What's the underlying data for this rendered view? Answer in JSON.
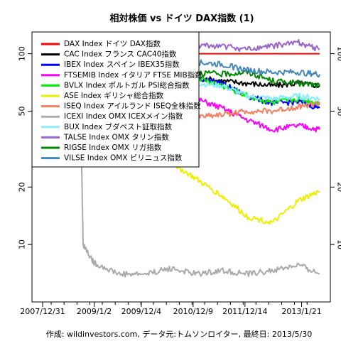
{
  "chart_data": {
    "type": "line",
    "title": "相対株価 vs ドイツ DAX指数 (1)",
    "footer": "作成: wildinvestors.com, データ元:トムソンロイター, 最終日: 2013/5/30",
    "y_scale": "log",
    "ylim": [
      5,
      130
    ],
    "y_ticks": [
      {
        "value": 10,
        "label": "10"
      },
      {
        "value": 20,
        "label": "20"
      },
      {
        "value": 50,
        "label": "50"
      },
      {
        "value": 100,
        "label": "100"
      }
    ],
    "x_range": [
      "2007-12-31",
      "2013-05-30"
    ],
    "x_ticks": [
      {
        "date": "2007-12-31",
        "label": "2007/12/31"
      },
      {
        "date": "2009-01-02",
        "label": "2009/1/2"
      },
      {
        "date": "2009-12-04",
        "label": "2009/12/4"
      },
      {
        "date": "2010-12-09",
        "label": "2010/12/9"
      },
      {
        "date": "2011-12-14",
        "label": "2011/12/14"
      },
      {
        "date": "2013-01-21",
        "label": "2013/1/21"
      }
    ],
    "legend_position": "top-left",
    "series": [
      {
        "name": "DAX Index ドイツ DAX指数",
        "color": "#ff0000",
        "points": [
          [
            "2007-12-31",
            100
          ],
          [
            "2008-12-31",
            100
          ],
          [
            "2010-12-31",
            100
          ],
          [
            "2013-05-30",
            100
          ]
        ]
      },
      {
        "name": "CAC Index フランス CAC40指数",
        "color": "#000000",
        "points": [
          [
            "2007-12-31",
            100
          ],
          [
            "2008-06-30",
            98
          ],
          [
            "2009-03-01",
            95
          ],
          [
            "2009-12-31",
            88
          ],
          [
            "2010-06-30",
            85
          ],
          [
            "2010-12-31",
            75
          ],
          [
            "2011-06-30",
            72
          ],
          [
            "2011-12-31",
            70
          ],
          [
            "2012-06-30",
            68
          ],
          [
            "2012-12-31",
            70
          ],
          [
            "2013-05-30",
            68
          ]
        ]
      },
      {
        "name": "IBEX Index スペイン IBEX35指数",
        "color": "#0000ff",
        "points": [
          [
            "2007-12-31",
            100
          ],
          [
            "2008-06-30",
            98
          ],
          [
            "2009-03-01",
            100
          ],
          [
            "2009-12-31",
            95
          ],
          [
            "2010-06-30",
            85
          ],
          [
            "2010-12-31",
            75
          ],
          [
            "2011-06-30",
            70
          ],
          [
            "2011-12-31",
            60
          ],
          [
            "2012-06-30",
            55
          ],
          [
            "2012-12-31",
            56
          ],
          [
            "2013-05-30",
            52
          ]
        ]
      },
      {
        "name": "FTSEMIB Index イタリア FTSE MIB指数",
        "color": "#ff00ff",
        "points": [
          [
            "2007-12-31",
            100
          ],
          [
            "2008-06-30",
            90
          ],
          [
            "2009-03-01",
            78
          ],
          [
            "2009-12-31",
            72
          ],
          [
            "2010-06-30",
            65
          ],
          [
            "2010-12-31",
            58
          ],
          [
            "2011-06-30",
            52
          ],
          [
            "2011-12-31",
            45
          ],
          [
            "2012-06-30",
            40
          ],
          [
            "2012-12-31",
            42
          ],
          [
            "2013-05-30",
            40
          ]
        ]
      },
      {
        "name": "BVLX Index ポルトガル PSI総合指数",
        "color": "#00ee00",
        "points": [
          [
            "2007-12-31",
            100
          ],
          [
            "2008-06-30",
            95
          ],
          [
            "2009-03-01",
            92
          ],
          [
            "2009-12-31",
            90
          ],
          [
            "2010-06-30",
            85
          ],
          [
            "2010-12-31",
            75
          ],
          [
            "2011-06-30",
            68
          ],
          [
            "2011-12-31",
            60
          ],
          [
            "2012-06-30",
            55
          ],
          [
            "2012-12-31",
            58
          ],
          [
            "2013-05-30",
            55
          ]
        ]
      },
      {
        "name": "ASE Index ギリシャ総合指数",
        "color": "#eeee00",
        "points": [
          [
            "2007-12-31",
            100
          ],
          [
            "2008-06-30",
            85
          ],
          [
            "2009-01-01",
            55
          ],
          [
            "2009-06-30",
            45
          ],
          [
            "2009-12-31",
            35
          ],
          [
            "2010-06-30",
            27
          ],
          [
            "2010-12-31",
            22
          ],
          [
            "2011-06-30",
            18
          ],
          [
            "2011-12-31",
            14
          ],
          [
            "2012-06-30",
            13
          ],
          [
            "2012-12-31",
            17
          ],
          [
            "2013-05-30",
            19
          ]
        ]
      },
      {
        "name": "ISEQ Index アイルランド ISEQ全株指数",
        "color": "#f48060",
        "points": [
          [
            "2007-12-31",
            100
          ],
          [
            "2008-06-30",
            80
          ],
          [
            "2009-01-01",
            55
          ],
          [
            "2009-12-31",
            50
          ],
          [
            "2010-06-30",
            48
          ],
          [
            "2010-12-31",
            47
          ],
          [
            "2011-06-30",
            48
          ],
          [
            "2011-12-31",
            50
          ],
          [
            "2012-06-30",
            50
          ],
          [
            "2012-12-31",
            53
          ],
          [
            "2013-05-30",
            55
          ]
        ]
      },
      {
        "name": "ICEXI Index OMX ICEXメイン指数",
        "color": "#aaaaaa",
        "points": [
          [
            "2007-12-31",
            100
          ],
          [
            "2008-06-30",
            70
          ],
          [
            "2008-09-30",
            40
          ],
          [
            "2008-10-15",
            10
          ],
          [
            "2009-01-01",
            8
          ],
          [
            "2009-06-30",
            7
          ],
          [
            "2009-12-31",
            7
          ],
          [
            "2010-06-30",
            7.5
          ],
          [
            "2010-12-31",
            7
          ],
          [
            "2011-06-30",
            7.3
          ],
          [
            "2011-12-31",
            7
          ],
          [
            "2012-06-30",
            7.3
          ],
          [
            "2012-12-31",
            7.8
          ],
          [
            "2013-05-30",
            7
          ]
        ]
      },
      {
        "name": "BUX Index ブダペスト証取指数",
        "color": "#88eeff",
        "points": [
          [
            "2007-12-31",
            100
          ],
          [
            "2008-06-30",
            92
          ],
          [
            "2009-03-01",
            80
          ],
          [
            "2009-12-31",
            85
          ],
          [
            "2010-06-30",
            80
          ],
          [
            "2010-12-31",
            70
          ],
          [
            "2011-06-30",
            68
          ],
          [
            "2011-12-31",
            60
          ],
          [
            "2012-06-30",
            58
          ],
          [
            "2012-12-31",
            60
          ],
          [
            "2013-05-30",
            58
          ]
        ]
      },
      {
        "name": "TALSE Index OMX タリン指数",
        "color": "#9966cc",
        "points": [
          [
            "2007-12-31",
            100
          ],
          [
            "2008-06-30",
            92
          ],
          [
            "2009-03-01",
            85
          ],
          [
            "2009-12-31",
            95
          ],
          [
            "2010-06-30",
            105
          ],
          [
            "2010-12-31",
            110
          ],
          [
            "2011-06-30",
            110
          ],
          [
            "2011-12-31",
            105
          ],
          [
            "2012-06-30",
            110
          ],
          [
            "2012-12-31",
            115
          ],
          [
            "2013-05-30",
            105
          ]
        ]
      },
      {
        "name": "RIGSE Index OMX リガ指数",
        "color": "#008800",
        "points": [
          [
            "2007-12-31",
            100
          ],
          [
            "2008-06-30",
            95
          ],
          [
            "2009-03-01",
            90
          ],
          [
            "2009-12-31",
            80
          ],
          [
            "2010-06-30",
            82
          ],
          [
            "2010-12-31",
            80
          ],
          [
            "2011-06-30",
            78
          ],
          [
            "2011-12-31",
            80
          ],
          [
            "2012-06-30",
            72
          ],
          [
            "2012-12-31",
            70
          ],
          [
            "2013-05-30",
            68
          ]
        ]
      },
      {
        "name": "VILSE Index OMX ビリニュス指数",
        "color": "#4488bb",
        "points": [
          [
            "2007-12-31",
            100
          ],
          [
            "2008-06-30",
            92
          ],
          [
            "2009-03-01",
            80
          ],
          [
            "2009-12-31",
            85
          ],
          [
            "2010-06-30",
            88
          ],
          [
            "2010-12-31",
            90
          ],
          [
            "2011-06-30",
            88
          ],
          [
            "2011-12-31",
            82
          ],
          [
            "2012-06-30",
            80
          ],
          [
            "2012-12-31",
            80
          ],
          [
            "2013-05-30",
            78
          ]
        ]
      }
    ]
  }
}
